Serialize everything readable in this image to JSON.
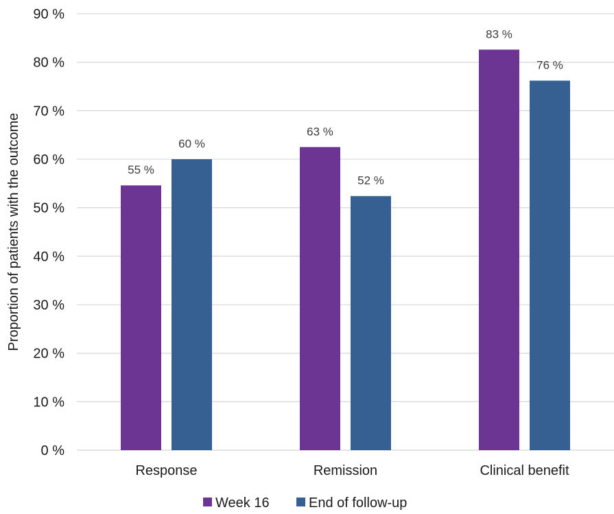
{
  "chart_data": {
    "type": "bar",
    "title": "",
    "xlabel": "",
    "ylabel": "Proportion of patients with the outcome",
    "categories": [
      "Response",
      "Remission",
      "Clinical benefit"
    ],
    "series": [
      {
        "name": "Week 16",
        "values": [
          54.6,
          62.5,
          82.6
        ],
        "labels": [
          "55 %",
          "63 %",
          "83 %"
        ],
        "color": "#6d3593"
      },
      {
        "name": "End of follow-up",
        "values": [
          60.0,
          52.4,
          76.2
        ],
        "labels": [
          "60 %",
          "52 %",
          "76 %"
        ],
        "color": "#376092"
      }
    ],
    "ylim": [
      0,
      90
    ],
    "yticks": [
      0,
      10,
      20,
      30,
      40,
      50,
      60,
      70,
      80,
      90
    ],
    "ytick_labels": [
      "0 %",
      "10 %",
      "20 %",
      "30 %",
      "40 %",
      "50 %",
      "60 %",
      "70 %",
      "80 %",
      "90 %"
    ],
    "grid": true,
    "legend_position": "bottom",
    "gridline_color": "#d9d9d9"
  }
}
